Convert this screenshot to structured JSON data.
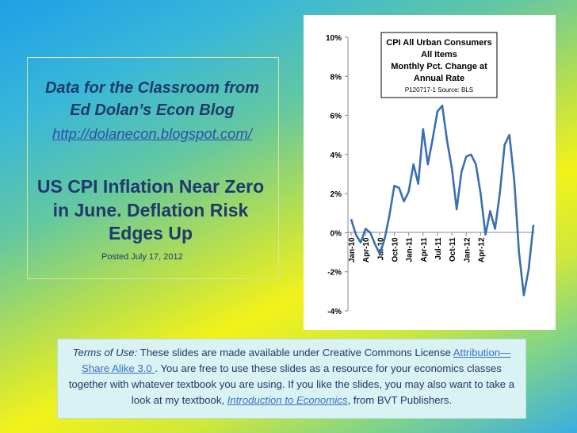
{
  "left_panel": {
    "blog_line1": "Data for the Classroom from",
    "blog_line2": "Ed Dolan’s Econ Blog",
    "blog_url": "http://dolanecon.blogspot.com/",
    "headline_line1": "US CPI Inflation Near Zero",
    "headline_line2": "in June. Deflation Risk",
    "headline_line3": "Edges Up",
    "posted": "Posted  July 17, 2012"
  },
  "terms": {
    "label": "Terms of Use:",
    "text1": " These slides are made available under Creative Commons License  ",
    "license_link": "Attribution—Share Alike 3.0 ",
    "text2": ". You are free to use these slides as a resource for your economics classes together with whatever textbook you are using. If you like the slides, you may also want to take a look at my textbook, ",
    "book_link": "Introduction to Economics",
    "text3": ", from BVT Publishers."
  },
  "colors": {
    "line": "#3a6fb0",
    "title_text": "#1f3a6b",
    "terms_bg": "#d9f2f3"
  },
  "chart_data": {
    "type": "line",
    "title_lines": [
      "CPI All Urban Consumers",
      "All Items",
      "Monthly Pct. Change at",
      "Annual Rate"
    ],
    "source": "P120717-1 Source: BLS",
    "ylim": [
      -4,
      10
    ],
    "y_ticks": [
      "10%",
      "8%",
      "6%",
      "4%",
      "2%",
      "0%",
      "-2%",
      "-4%"
    ],
    "y_tick_values": [
      10,
      8,
      6,
      4,
      2,
      0,
      -2,
      -4
    ],
    "x_tick_labels": [
      "Jan-10",
      "Apr-10",
      "Jul-10",
      "Oct-10",
      "Jan-11",
      "Apr-11",
      "Jul-11",
      "Oct-11",
      "Jan-12",
      "Apr-12"
    ],
    "x_tick_months": [
      0,
      3,
      6,
      9,
      12,
      15,
      18,
      21,
      24,
      27
    ],
    "grid": false,
    "legend": "none",
    "series": [
      {
        "values": [
          0.7,
          -0.1,
          -0.5,
          0.2,
          0.0,
          -0.6,
          -1.1,
          -0.3,
          0.9,
          2.4,
          2.3,
          1.6,
          2.1,
          3.5,
          2.5,
          5.3,
          3.5,
          4.8,
          6.2,
          6.5,
          4.7,
          3.3,
          1.2,
          3.1,
          3.9,
          4.0,
          3.5,
          2.0,
          -0.1,
          1.1,
          0.2,
          2.0,
          4.5,
          5.0,
          2.7,
          -1.0,
          -3.2,
          -1.9,
          0.4
        ]
      }
    ]
  }
}
